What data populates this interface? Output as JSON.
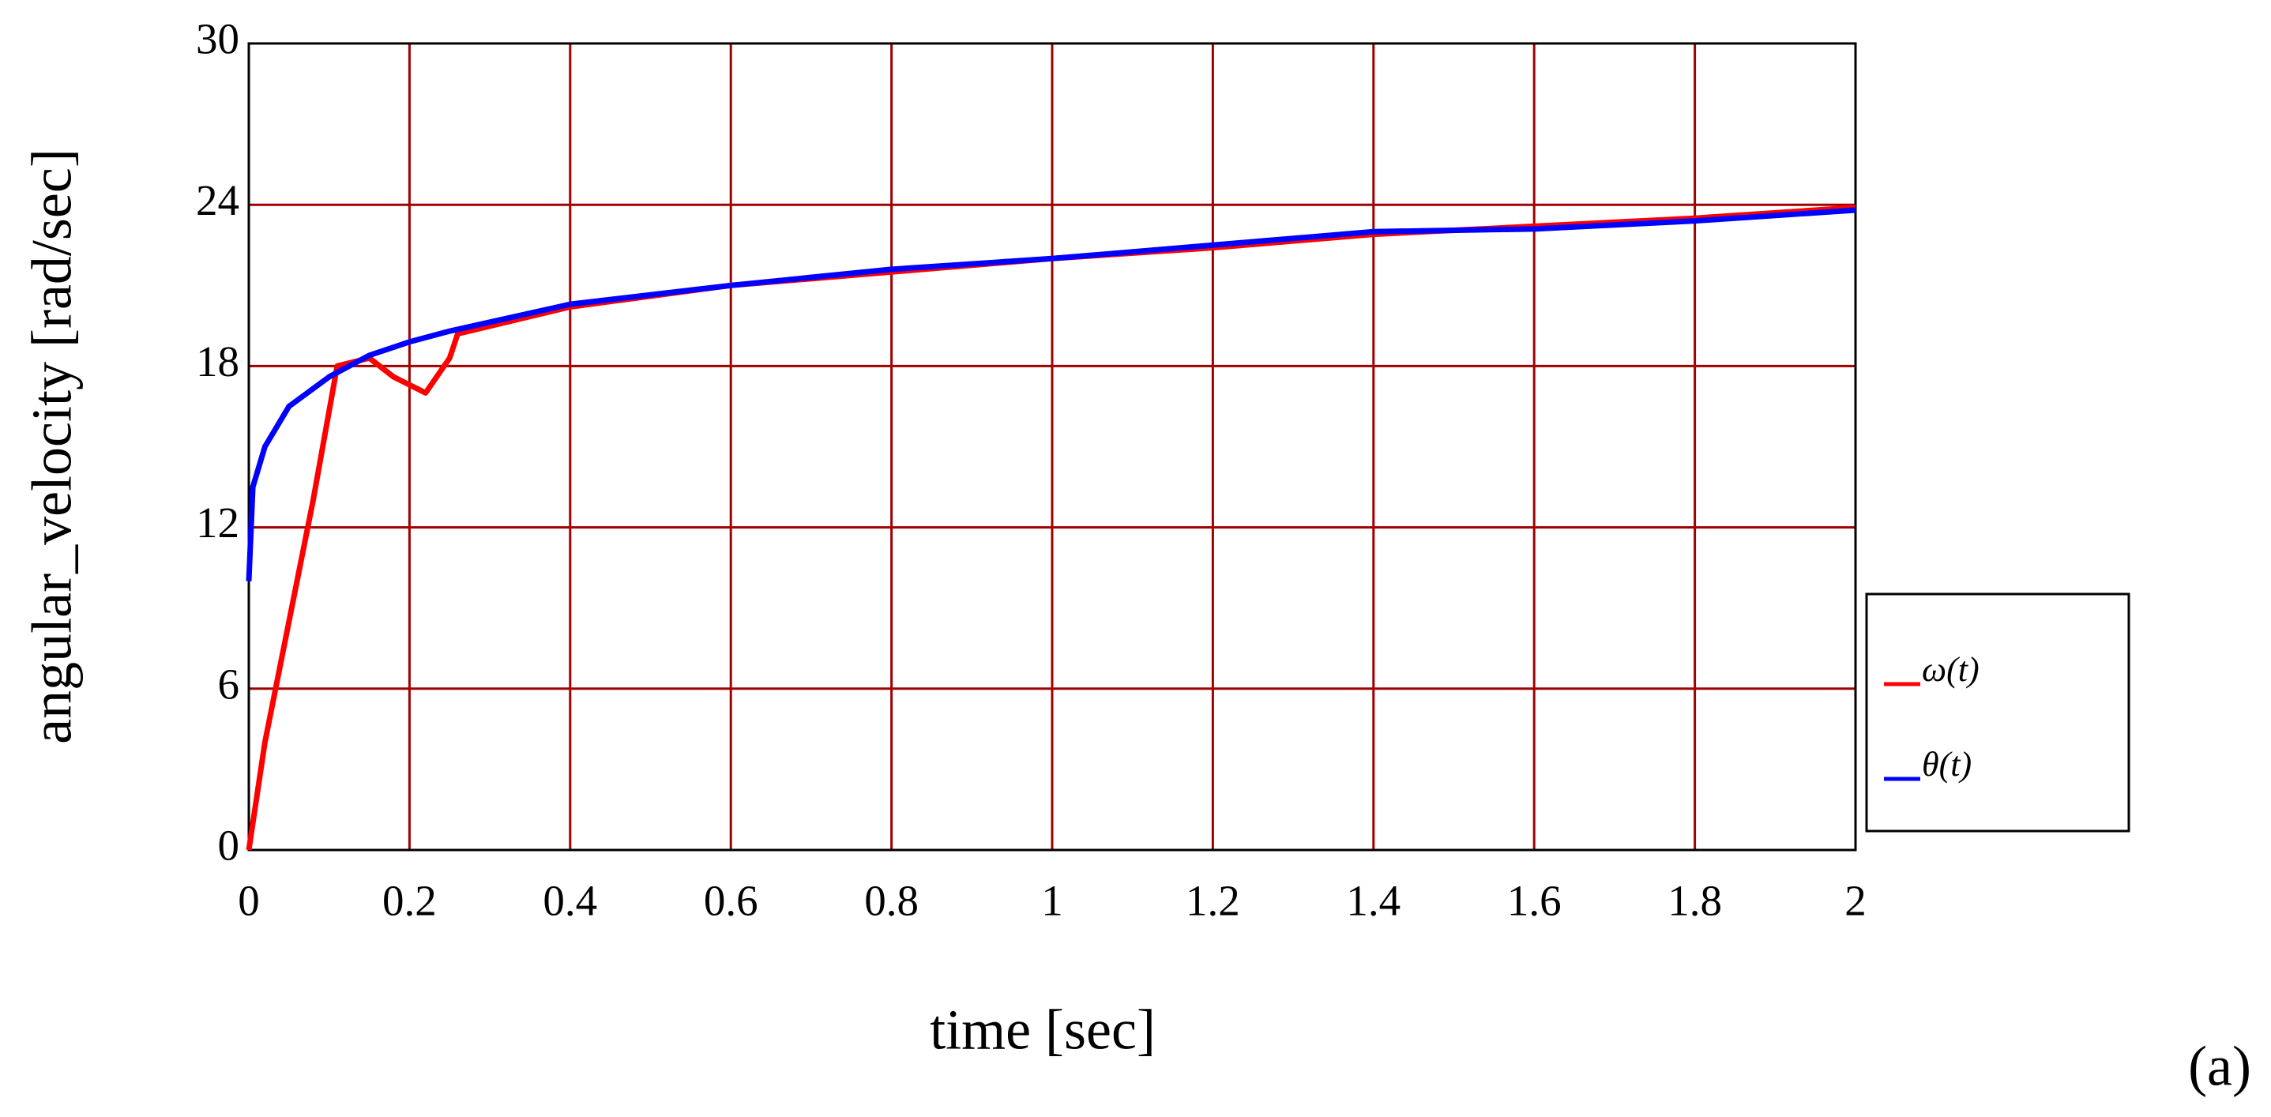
{
  "chart_data": {
    "type": "line",
    "xlabel": "time [sec]",
    "ylabel": "angular_velocity [rad/sec]",
    "annotation": "(a)",
    "xlim": [
      0,
      2
    ],
    "ylim": [
      0,
      30
    ],
    "xticks": [
      0,
      0.2,
      0.4,
      0.6,
      0.8,
      1,
      1.2,
      1.4,
      1.6,
      1.8,
      2
    ],
    "yticks": [
      0,
      6,
      12,
      18,
      24,
      30
    ],
    "grid": true,
    "grid_color": "#a00000",
    "legend": "right",
    "series": [
      {
        "name": "ω(t)",
        "color": "#ff0000",
        "x": [
          0,
          0.02,
          0.05,
          0.08,
          0.11,
          0.15,
          0.18,
          0.22,
          0.25,
          0.26,
          0.4,
          0.6,
          0.8,
          1.0,
          1.2,
          1.4,
          1.6,
          1.8,
          2.0
        ],
        "values": [
          0,
          4,
          8.5,
          13,
          18,
          18.3,
          17.6,
          17,
          18.3,
          19.2,
          20.2,
          21,
          21.5,
          22,
          22.4,
          22.9,
          23.2,
          23.5,
          23.9
        ]
      },
      {
        "name": "θ(t)",
        "color": "#0000ff",
        "x": [
          0,
          0.005,
          0.02,
          0.05,
          0.1,
          0.15,
          0.2,
          0.25,
          0.4,
          0.6,
          0.8,
          1.0,
          1.2,
          1.4,
          1.6,
          1.8,
          2.0
        ],
        "values": [
          10,
          13.5,
          15,
          16.5,
          17.6,
          18.4,
          18.9,
          19.3,
          20.3,
          21,
          21.6,
          22,
          22.5,
          23,
          23.1,
          23.4,
          23.8
        ]
      }
    ]
  }
}
